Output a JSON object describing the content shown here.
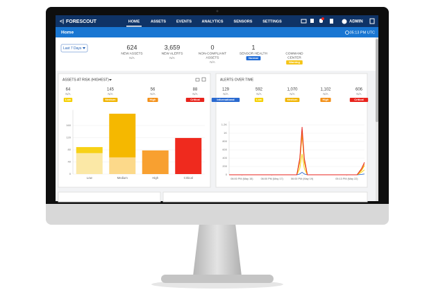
{
  "nav": {
    "logo": "FORESCOUT",
    "items": [
      "HOME",
      "ASSETS",
      "EVENTS",
      "ANALYTICS",
      "SENSORS",
      "SETTINGS"
    ],
    "user": "ADMIN"
  },
  "page": {
    "title": "Home",
    "time": "05:13 PM UTC"
  },
  "filter": "Last 7 Days",
  "stats": [
    {
      "value": "624",
      "label": [
        "NEW ASSETS"
      ],
      "sub": "N/A"
    },
    {
      "value": "3,659",
      "label": [
        "NEW ALERTS"
      ],
      "sub": "N/A"
    },
    {
      "value": "0",
      "label": [
        "NON-COMPLIANT",
        "ASSETS"
      ],
      "sub": "N/A"
    },
    {
      "value": "1",
      "label": [
        "SENSOR HEALTH"
      ],
      "badge": "Normal",
      "badge_color": "#1f6bd6"
    },
    {
      "label": [
        "COMMAND",
        "CENTER"
      ],
      "badge": "Warning",
      "badge_color": "#f5c518"
    }
  ],
  "chart_data": [
    {
      "type": "bar",
      "title": "ASSETS AT RISK (HIGHEST)",
      "categories": [
        "Low",
        "Medium",
        "High",
        "Critical"
      ],
      "counts": [
        "64",
        "145",
        "56",
        "88"
      ],
      "count_notes": [
        "N/A",
        "N/A",
        "N/A",
        "N/A"
      ],
      "badge_colors": [
        "#f5d000",
        "#f0b400",
        "#f39018",
        "#e8231c"
      ],
      "series": [
        {
          "colors": [
            "#fbe8a6",
            "#fcd98a",
            "#f8a030",
            "#ef2a1e"
          ],
          "values": [
            69,
            55,
            78,
            119
          ]
        },
        {
          "colors": [
            "#f7d116",
            "#f5b800",
            null,
            null
          ],
          "values": [
            20,
            144,
            null,
            null
          ]
        }
      ],
      "ylim": [
        0,
        200
      ],
      "yticks": [
        0,
        40,
        80,
        120,
        160
      ]
    },
    {
      "type": "line",
      "title": "ALERTS OVER TIME",
      "counts": [
        "129",
        "592",
        "1,070",
        "1,102",
        "606"
      ],
      "count_notes": [
        "N/A",
        "N/A",
        "N/A",
        "N/A",
        "N/A"
      ],
      "x": [
        14.9,
        19.4,
        19.6,
        19.75,
        19.9,
        20.1,
        23.0,
        23.4,
        23.7,
        23.9
      ],
      "series": [
        {
          "name": "Informational",
          "color": "#2a6ad0",
          "values": [
            0,
            0,
            20,
            60,
            20,
            0,
            0,
            0,
            10,
            20
          ]
        },
        {
          "name": "Low",
          "color": "#f5d000",
          "values": [
            0,
            0,
            150,
            500,
            150,
            0,
            0,
            0,
            60,
            120
          ]
        },
        {
          "name": "Medium",
          "color": "#f0b400",
          "values": [
            0,
            0,
            300,
            950,
            300,
            0,
            0,
            0,
            100,
            220
          ]
        },
        {
          "name": "High",
          "color": "#f39018",
          "values": [
            0,
            0,
            350,
            1050,
            350,
            0,
            0,
            0,
            120,
            260
          ]
        },
        {
          "name": "Critical",
          "color": "#e8231c",
          "values": [
            0,
            0,
            400,
            1150,
            400,
            0,
            0,
            0,
            150,
            300
          ]
        }
      ],
      "xlim": [
        14.9,
        23.9
      ],
      "xticks": [
        {
          "value": 15.75,
          "label": "06:00 PM (May 15)"
        },
        {
          "value": 17.75,
          "label": "06:00 PM (May 17)"
        },
        {
          "value": 19.75,
          "label": "06:00 PM (May 19)"
        },
        {
          "value": 22.72,
          "label": "05:13 PM (May 22)"
        }
      ],
      "ylim": [
        0,
        1200
      ],
      "yticks": [
        0,
        200,
        400,
        600,
        800,
        {
          "value": 1000,
          "label": "1K"
        },
        {
          "value": 1200,
          "label": "1.2K"
        }
      ]
    }
  ]
}
